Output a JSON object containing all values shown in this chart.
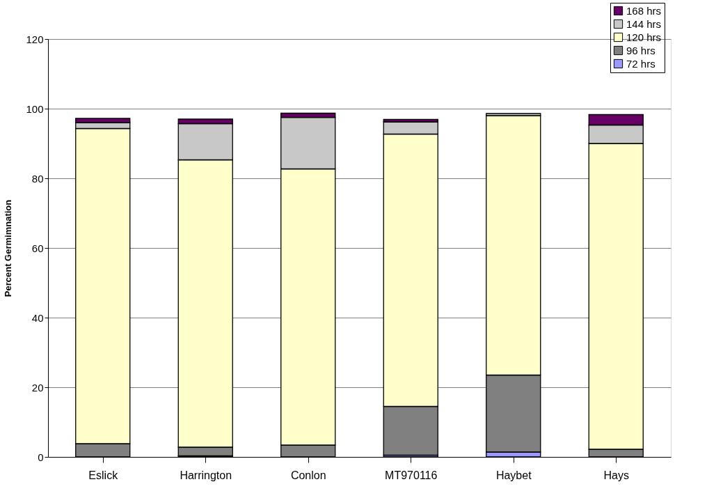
{
  "chart_data": {
    "type": "bar",
    "stacked": true,
    "ylabel": "Percent Germimnation",
    "categories": [
      "Eslick",
      "Harrington",
      "Conlon",
      "MT970116",
      "Haybet",
      "Hays"
    ],
    "series": [
      {
        "name": "72 hrs",
        "color": "#9999ff",
        "values": [
          null,
          0.3,
          null,
          0.5,
          1.4,
          null
        ]
      },
      {
        "name": "96 hrs",
        "color": "#808080",
        "values": [
          3.8,
          2.5,
          3.4,
          14.0,
          22.1,
          2.2
        ]
      },
      {
        "name": "120 hrs",
        "color": "#ffffcc",
        "values": [
          90.5,
          82.5,
          79.3,
          78.2,
          74.5,
          87.8
        ]
      },
      {
        "name": "144 hrs",
        "color": "#c8c8c8",
        "values": [
          1.7,
          10.4,
          14.8,
          3.5,
          0.6,
          5.3
        ]
      },
      {
        "name": "168 hrs",
        "color": "#660066",
        "values": [
          1.2,
          1.3,
          1.2,
          0.7,
          null,
          3.0
        ]
      }
    ],
    "ylim": [
      0,
      120
    ],
    "yticks": [
      0,
      20,
      40,
      60,
      80,
      100,
      120
    ],
    "grid": "y",
    "legend": "top right"
  }
}
